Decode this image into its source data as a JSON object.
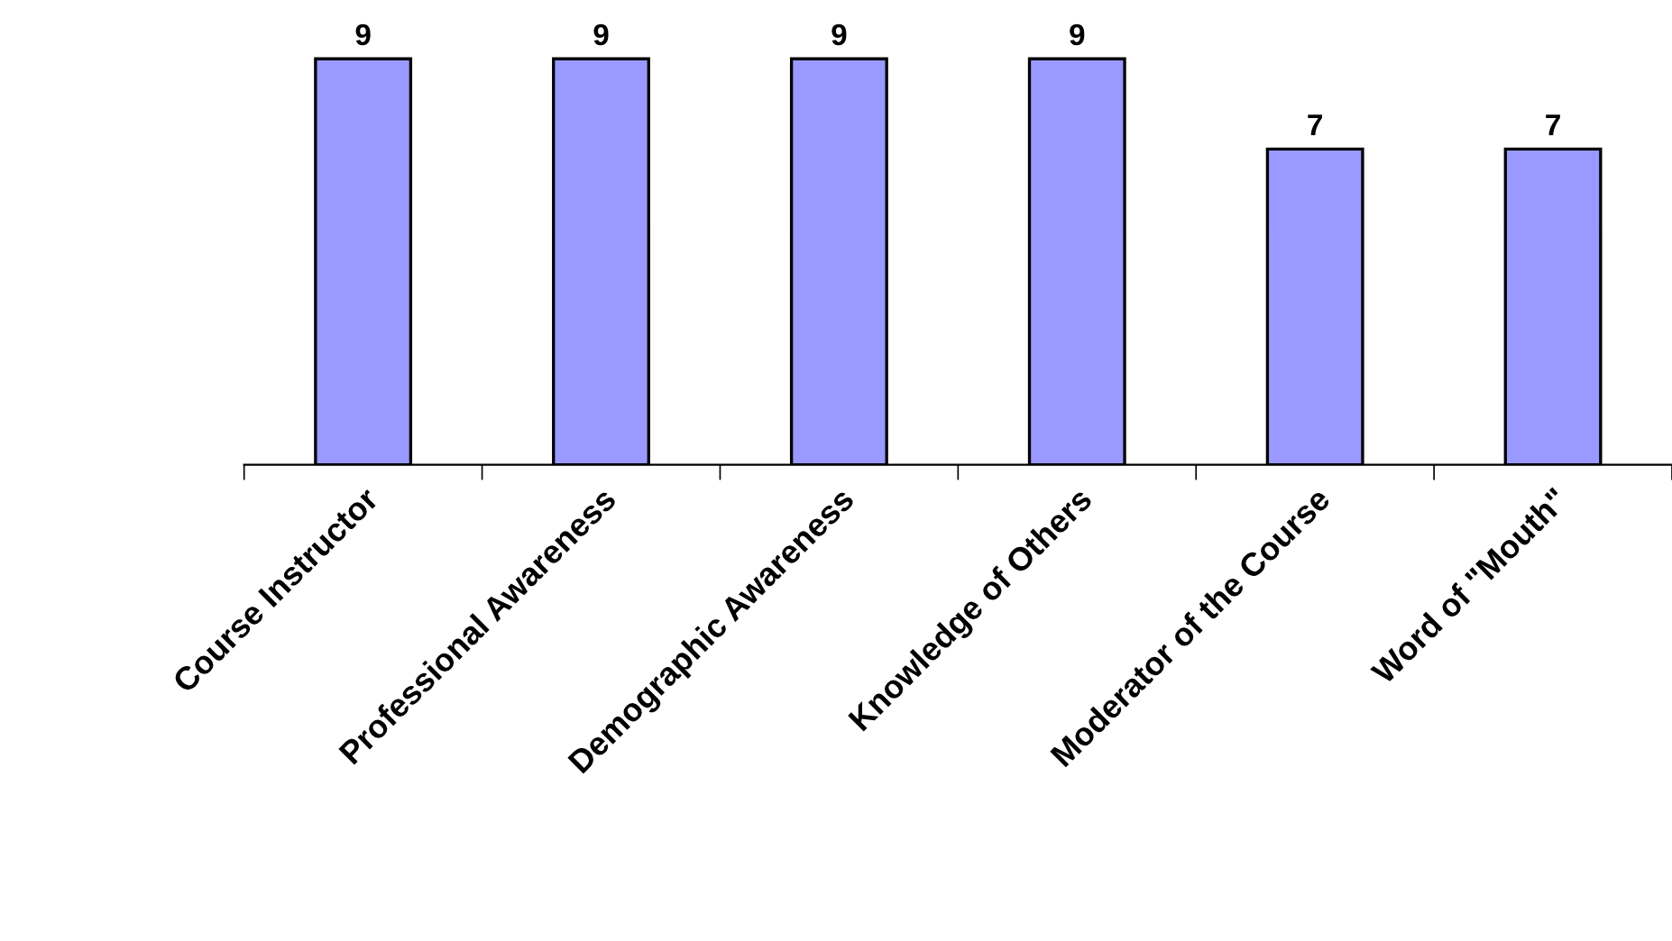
{
  "chart_data": {
    "type": "bar",
    "categories": [
      "Course Instructor",
      "Professional Awareness",
      "Demographic Awareness",
      "Knowledge of Others",
      "Moderator of the Course",
      "Word of \"Mouth\""
    ],
    "values": [
      9,
      9,
      9,
      9,
      7,
      7
    ],
    "color": "#9999ff",
    "data_labels": true,
    "grid": false,
    "legend": false,
    "tick_labels": "x"
  }
}
